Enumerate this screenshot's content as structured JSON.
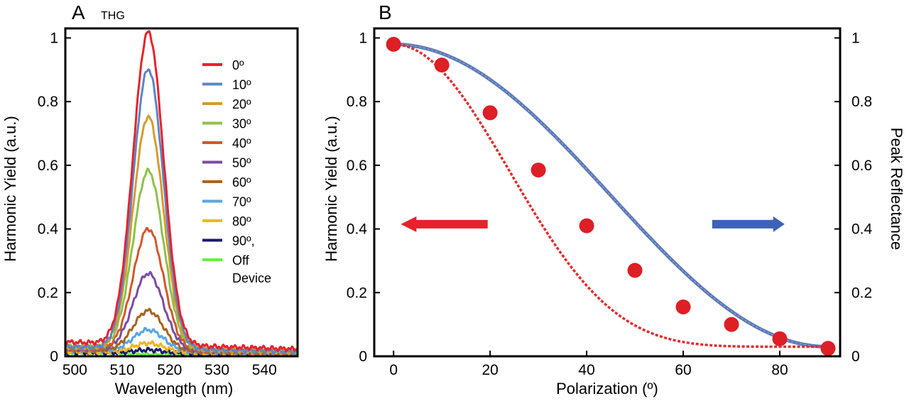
{
  "chart_data": [
    {
      "panel": "A",
      "type": "line",
      "subtitle": "THG",
      "xlabel": "Wavelength (nm)",
      "ylabel": "Harmonic Yield (a.u.)",
      "xlim": [
        498,
        547
      ],
      "ylim": [
        0,
        1.03
      ],
      "xticks": [
        500,
        510,
        520,
        530,
        540
      ],
      "yticks": [
        0,
        0.2,
        0.4,
        0.6,
        0.8,
        1
      ],
      "ytick_labels": [
        "0",
        "0.2",
        "0.4",
        "0.6",
        "0.8",
        "1"
      ],
      "peak_center_nm": 515.5,
      "peak_width_nm": 3.2,
      "series": [
        {
          "name": "0º",
          "peak": 1.0,
          "baseline": 0.045,
          "color": "#e8222b"
        },
        {
          "name": "10º",
          "peak": 0.89,
          "baseline": 0.03,
          "color": "#5b86c5"
        },
        {
          "name": "20º",
          "peak": 0.74,
          "baseline": 0.03,
          "color": "#d89a2e"
        },
        {
          "name": "30º",
          "peak": 0.57,
          "baseline": 0.03,
          "color": "#8cc24a"
        },
        {
          "name": "40º",
          "peak": 0.39,
          "baseline": 0.025,
          "color": "#d2582c"
        },
        {
          "name": "50º",
          "peak": 0.25,
          "baseline": 0.025,
          "color": "#7a4ea0"
        },
        {
          "name": "60º",
          "peak": 0.135,
          "baseline": 0.02,
          "color": "#a8631f"
        },
        {
          "name": "70º",
          "peak": 0.075,
          "baseline": 0.02,
          "color": "#58a6e0"
        },
        {
          "name": "80º",
          "peak": 0.035,
          "baseline": 0.015,
          "color": "#f2b420"
        },
        {
          "name": "90º,",
          "peak": 0.015,
          "baseline": 0.012,
          "color": "#1a1a6e"
        },
        {
          "name": "Off\nDevice",
          "peak": 0.0,
          "baseline": 0.012,
          "color": "#66f23c"
        }
      ]
    },
    {
      "panel": "B",
      "type": "scatter",
      "xlabel": "Polarization (º)",
      "ylabel": "Harmonic Yield (a.u.)",
      "ylabel_right": "Peak Reflectance",
      "xlim": [
        -4,
        92.5
      ],
      "ylim": [
        0,
        1.03
      ],
      "xticks": [
        0,
        20,
        40,
        60,
        80
      ],
      "yticks": [
        0,
        0.2,
        0.4,
        0.6,
        0.8,
        1
      ],
      "ytick_labels": [
        "0",
        "0.2",
        "0.4",
        "0.6",
        "0.8",
        "1"
      ],
      "points": {
        "x": [
          0,
          10,
          20,
          30,
          40,
          50,
          60,
          70,
          80,
          90
        ],
        "y": [
          0.98,
          0.915,
          0.765,
          0.585,
          0.41,
          0.27,
          0.155,
          0.1,
          0.055,
          0.025
        ],
        "color": "#dd1f26"
      },
      "solid_curve": {
        "name": "Peak Reflectance",
        "formula": "cos^2",
        "offset": 0.03,
        "amplitude": 0.95,
        "color": "#5b79b8"
      },
      "dotted_curve": {
        "name": "Harmonic Yield model",
        "formula": "cos^6",
        "offset": 0.03,
        "amplitude": 0.95,
        "color": "#e32b2b"
      },
      "arrows": [
        {
          "direction": "left",
          "meaning": "left axis",
          "color": "#e8222b"
        },
        {
          "direction": "right",
          "meaning": "right axis",
          "color": "#3c63b8"
        }
      ]
    }
  ]
}
